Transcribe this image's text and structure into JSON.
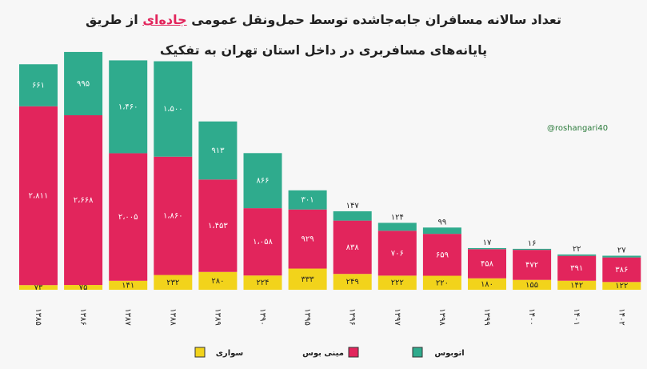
{
  "chart_data": {
    "type": "stacked-bar",
    "title": {
      "line1": [
        "تعداد سالانه مسافران جابه‌جاشده توسط حمل‌ونقل عمومی",
        "جاده‌ای",
        "از طریق"
      ],
      "line2": "پایانه‌های مسافربری در داخل استان تهران به تفکیک"
    },
    "watermark": "@roshangari40",
    "categories": [
      "۱۳۸۵",
      "۱۳۸۶",
      "۱۳۸۷",
      "۱۳۸۸",
      "۱۳۸۹",
      "۱۳۹۰",
      "۱۳۹۵",
      "۱۳۹۶",
      "۱۳۹۷",
      "۱۳۹۸",
      "۱۳۹۹",
      "۱۴۰۰",
      "۱۴۰۱",
      "۱۴۰۲"
    ],
    "ylim": [
      0,
      3800
    ],
    "series": [
      {
        "name": "سواری",
        "color": "#f2d31b",
        "values": [
          73,
          75,
          141,
          232,
          280,
          224,
          333,
          249,
          222,
          220,
          180,
          155,
          142,
          122
        ],
        "value_labels": [
          "۷۳",
          "۷۵",
          "۱۴۱",
          "۲۳۲",
          "۲۸۰",
          "۲۲۴",
          "۳۳۳",
          "۲۴۹",
          "۲۲۲",
          "۲۲۰",
          "۱۸۰",
          "۱۵۵",
          "۱۴۲",
          "۱۲۲"
        ]
      },
      {
        "name": "مینی بوس",
        "color": "#e2255c",
        "values": [
          2811,
          2668,
          2005,
          1860,
          1453,
          1058,
          929,
          838,
          706,
          659,
          458,
          472,
          391,
          386
        ],
        "value_labels": [
          "۲،۸۱۱",
          "۲،۶۶۸",
          "۲،۰۰۵",
          "۱،۸۶۰",
          "۱،۴۵۳",
          "۱،۰۵۸",
          "۹۲۹",
          "۸۳۸",
          "۷۰۶",
          "۶۵۹",
          "۴۵۸",
          "۴۷۲",
          "۳۹۱",
          "۳۸۶"
        ]
      },
      {
        "name": "اتوبوس",
        "color": "#2fab8d",
        "values": [
          661,
          995,
          1460,
          1500,
          913,
          866,
          301,
          147,
          124,
          99,
          17,
          16,
          22,
          27
        ],
        "value_labels": [
          "۶۶۱",
          "۹۹۵",
          "۱،۴۶۰",
          "۱،۵۰۰",
          "۹۱۳",
          "۸۶۶",
          "۳۰۱",
          "۱۴۷",
          "۱۲۴",
          "۹۹",
          "۱۷",
          "۱۶",
          "۲۲",
          "۲۷"
        ]
      }
    ]
  }
}
